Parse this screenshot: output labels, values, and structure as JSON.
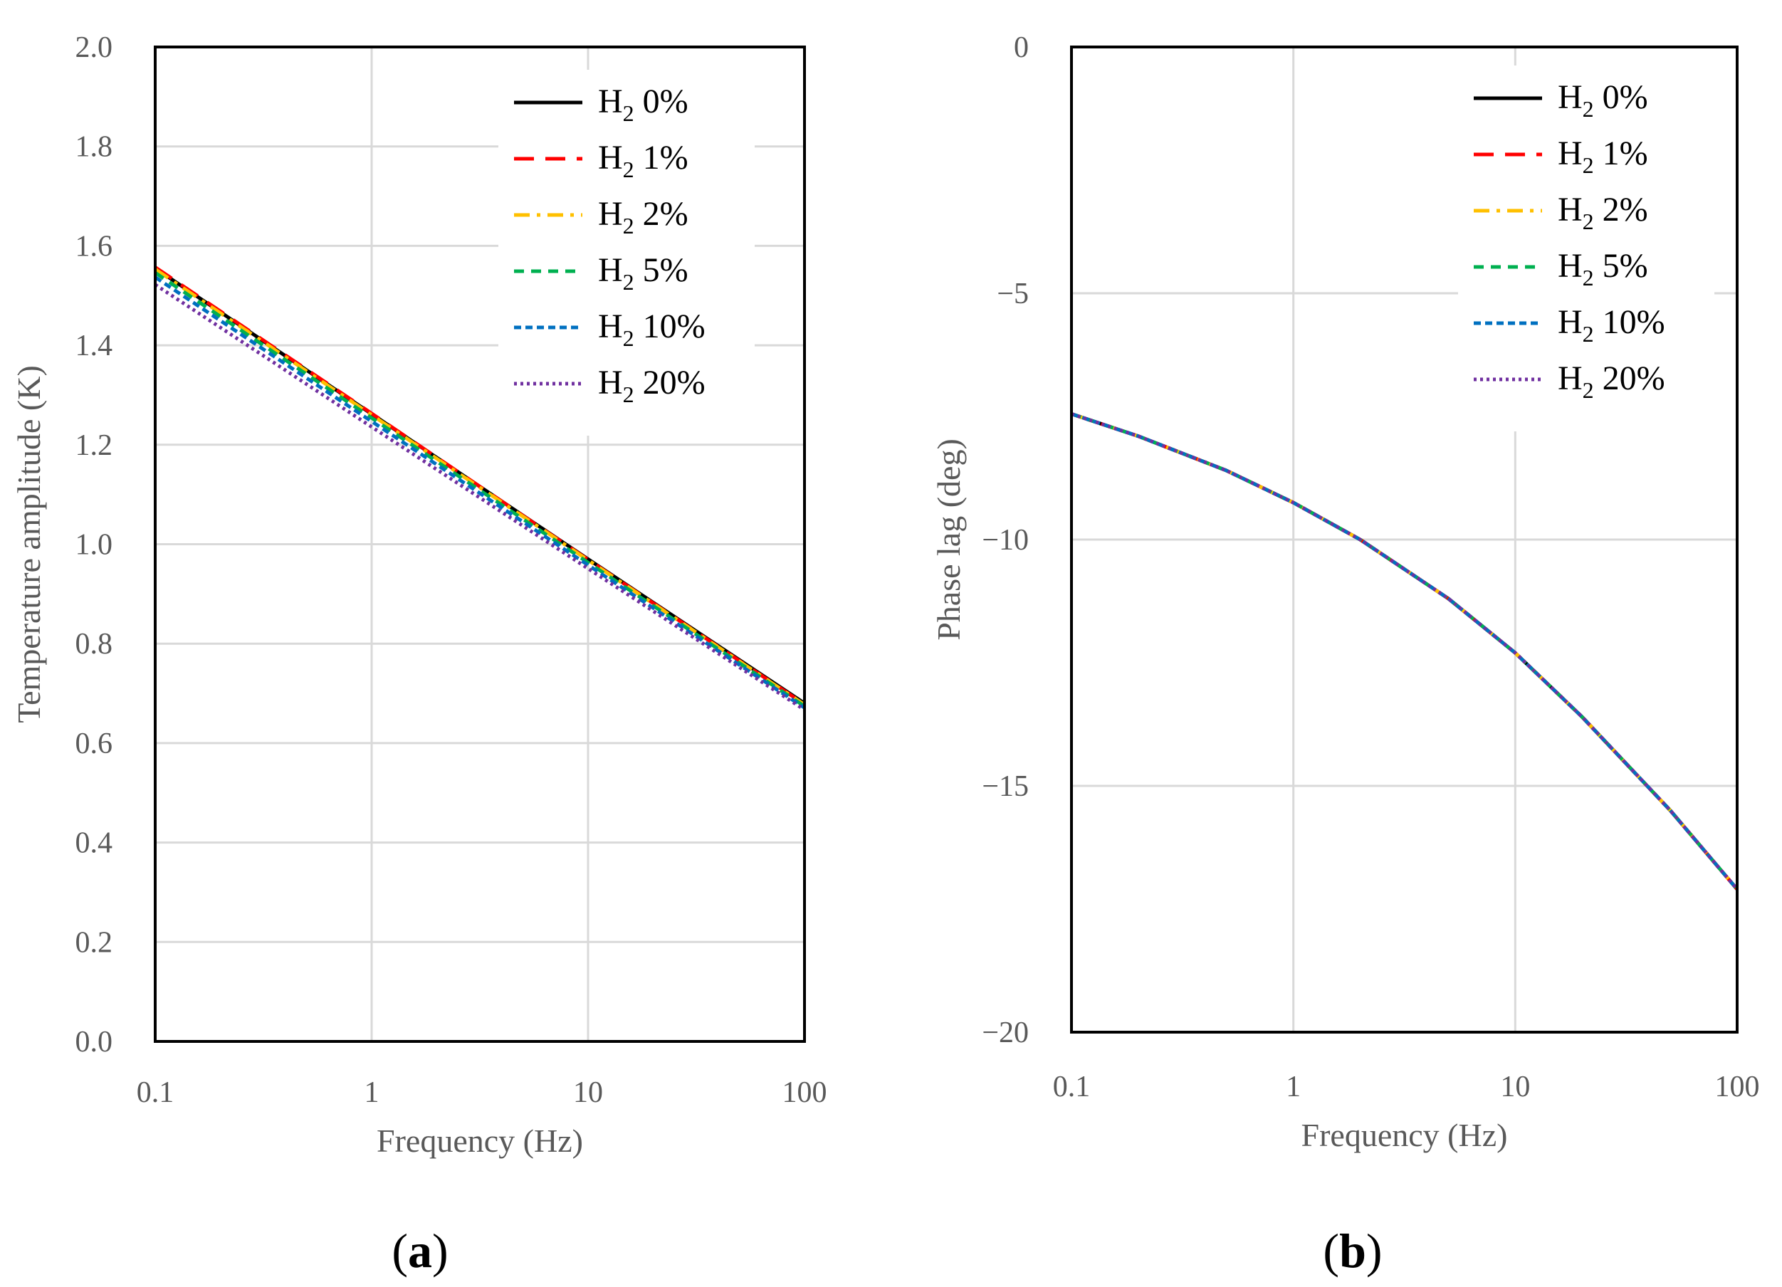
{
  "colors": {
    "H2_0": "#000000",
    "H2_1": "#ff0000",
    "H2_2": "#ffc000",
    "H2_5": "#00b050",
    "H2_10": "#0070c0",
    "H2_20": "#7030a0",
    "grid": "#d9d9d9",
    "axis_text": "#595959"
  },
  "chart_data": [
    {
      "id": "a",
      "type": "line",
      "panel_label": {
        "open": "(",
        "letter": "a",
        "close": ")"
      },
      "title": "",
      "xlabel": "Frequency (Hz)",
      "ylabel": "Temperature amplitude (K)",
      "xscale": "log",
      "xlim": [
        0.1,
        100
      ],
      "ylim": [
        0.0,
        2.0
      ],
      "xticks": [
        0.1,
        1,
        10,
        100
      ],
      "xtick_labels": [
        "0.1",
        "1",
        "10",
        "100"
      ],
      "yticks": [
        0.0,
        0.2,
        0.4,
        0.6,
        0.8,
        1.0,
        1.2,
        1.4,
        1.6,
        1.8,
        2.0
      ],
      "ytick_labels": [
        "0.0",
        "0.2",
        "0.4",
        "0.6",
        "0.8",
        "1.0",
        "1.2",
        "1.4",
        "1.6",
        "1.8",
        "2.0"
      ],
      "grid": true,
      "legend_position": "top-right",
      "x": [
        0.1,
        1,
        10,
        100
      ],
      "series": [
        {
          "name": "H2 0%",
          "base": "H",
          "sub": "2",
          "pct": "0%",
          "color_key": "H2_0",
          "dash": "solid",
          "values": [
            1.555,
            1.262,
            0.97,
            0.68
          ]
        },
        {
          "name": "H2 1%",
          "base": "H",
          "sub": "2",
          "pct": "1%",
          "color_key": "H2_1",
          "dash": "dash",
          "values": [
            1.557,
            1.263,
            0.969,
            0.678
          ]
        },
        {
          "name": "H2 2%",
          "base": "H",
          "sub": "2",
          "pct": "2%",
          "color_key": "H2_2",
          "dash": "dashdot",
          "values": [
            1.553,
            1.26,
            0.968,
            0.677
          ]
        },
        {
          "name": "H2 5%",
          "base": "H",
          "sub": "2",
          "pct": "5%",
          "color_key": "H2_5",
          "dash": "shortdash",
          "values": [
            1.546,
            1.254,
            0.963,
            0.674
          ]
        },
        {
          "name": "H2 10%",
          "base": "H",
          "sub": "2",
          "pct": "10%",
          "color_key": "H2_10",
          "dash": "dense",
          "values": [
            1.537,
            1.247,
            0.958,
            0.671
          ]
        },
        {
          "name": "H2 20%",
          "base": "H",
          "sub": "2",
          "pct": "20%",
          "color_key": "H2_20",
          "dash": "dot",
          "values": [
            1.522,
            1.236,
            0.951,
            0.667
          ]
        }
      ]
    },
    {
      "id": "b",
      "type": "line",
      "panel_label": {
        "open": "(",
        "letter": "b",
        "close": ")"
      },
      "title": "",
      "xlabel": "Frequency (Hz)",
      "ylabel": "Phase lag (deg)",
      "xscale": "log",
      "xlim": [
        0.1,
        100
      ],
      "ylim": [
        -20,
        0
      ],
      "xticks": [
        0.1,
        1,
        10,
        100
      ],
      "xtick_labels": [
        "0.1",
        "1",
        "10",
        "100"
      ],
      "yticks": [
        0,
        -5,
        -10,
        -15,
        -20
      ],
      "ytick_labels": [
        "0",
        "−5",
        "−10",
        "−15",
        "−20"
      ],
      "grid": true,
      "legend_position": "top-right",
      "x": [
        0.1,
        0.2,
        0.5,
        1,
        2,
        5,
        10,
        20,
        50,
        100
      ],
      "series": [
        {
          "name": "H2 0%",
          "base": "H",
          "sub": "2",
          "pct": "0%",
          "color_key": "H2_0",
          "dash": "solid",
          "values": [
            -7.45,
            -7.9,
            -8.6,
            -9.25,
            -10.0,
            -11.2,
            -12.3,
            -13.6,
            -15.5,
            -17.1
          ]
        },
        {
          "name": "H2 1%",
          "base": "H",
          "sub": "2",
          "pct": "1%",
          "color_key": "H2_1",
          "dash": "dash",
          "values": [
            -7.45,
            -7.9,
            -8.6,
            -9.25,
            -10.0,
            -11.2,
            -12.3,
            -13.6,
            -15.5,
            -17.1
          ]
        },
        {
          "name": "H2 2%",
          "base": "H",
          "sub": "2",
          "pct": "2%",
          "color_key": "H2_2",
          "dash": "dashdot",
          "values": [
            -7.45,
            -7.9,
            -8.6,
            -9.25,
            -10.0,
            -11.2,
            -12.3,
            -13.6,
            -15.5,
            -17.1
          ]
        },
        {
          "name": "H2 5%",
          "base": "H",
          "sub": "2",
          "pct": "5%",
          "color_key": "H2_5",
          "dash": "shortdash",
          "values": [
            -7.45,
            -7.9,
            -8.6,
            -9.25,
            -10.0,
            -11.2,
            -12.3,
            -13.6,
            -15.5,
            -17.1
          ]
        },
        {
          "name": "H2 10%",
          "base": "H",
          "sub": "2",
          "pct": "10%",
          "color_key": "H2_10",
          "dash": "dense",
          "values": [
            -7.45,
            -7.9,
            -8.6,
            -9.25,
            -10.0,
            -11.2,
            -12.3,
            -13.6,
            -15.5,
            -17.1
          ]
        },
        {
          "name": "H2 20%",
          "base": "H",
          "sub": "2",
          "pct": "20%",
          "color_key": "H2_20",
          "dash": "dot",
          "values": [
            -7.45,
            -7.9,
            -8.6,
            -9.25,
            -10.0,
            -11.2,
            -12.3,
            -13.6,
            -15.5,
            -17.1
          ]
        }
      ]
    }
  ]
}
